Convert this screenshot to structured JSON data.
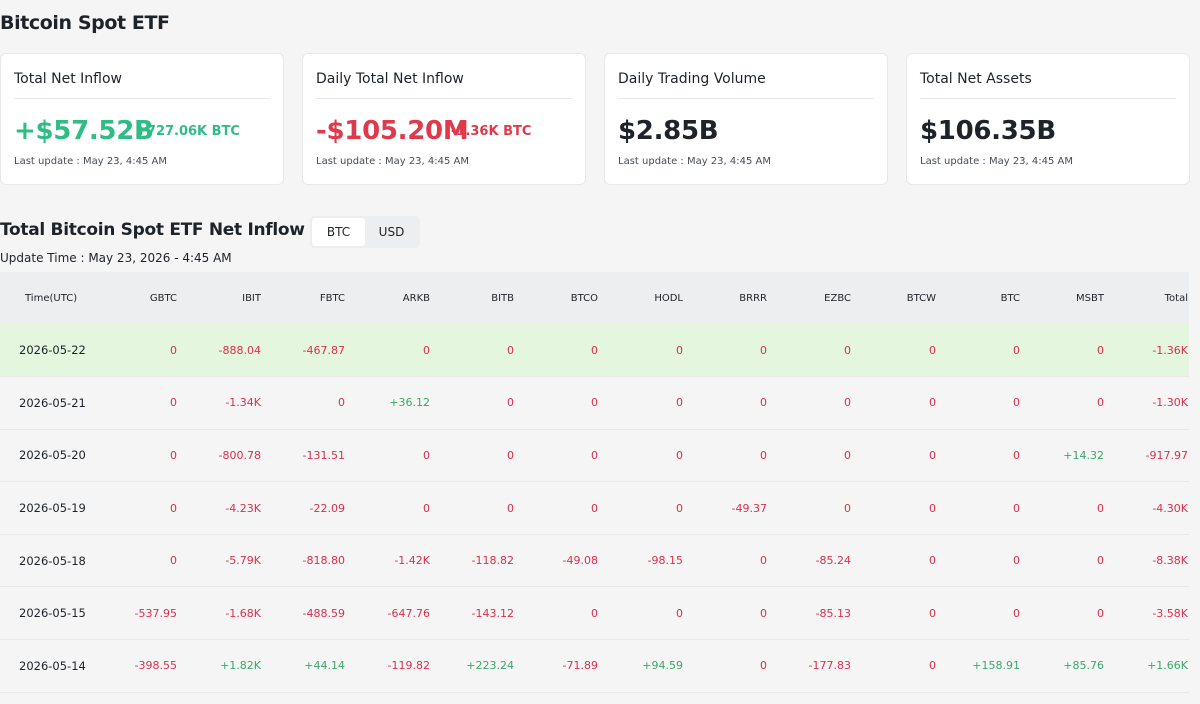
{
  "page_title": "Bitcoin Spot ETF",
  "cards": [
    {
      "label": "Total Net Inflow",
      "value": "+$57.52B",
      "sub": "+727.06K BTC",
      "tone": "pos",
      "update": "Last update : May 23, 4:45 AM"
    },
    {
      "label": "Daily Total Net Inflow",
      "value": "-$105.20M",
      "sub": "-1.36K BTC",
      "tone": "neg",
      "update": "Last update : May 23, 4:45 AM"
    },
    {
      "label": "Daily Trading Volume",
      "value": "$2.85B",
      "sub": "",
      "tone": "neutral",
      "update": "Last update : May 23, 4:45 AM"
    },
    {
      "label": "Total Net Assets",
      "value": "$106.35B",
      "sub": "",
      "tone": "neutral",
      "update": "Last update : May 23, 4:45 AM"
    }
  ],
  "section": {
    "title": "Total Bitcoin Spot ETF Net Inflow (BTC)",
    "toggle": [
      "BTC",
      "USD"
    ],
    "toggle_active": "BTC",
    "update_time": "Update Time : May 23, 2026 - 4:45 AM"
  },
  "table": {
    "columns": [
      "Time(UTC)",
      "GBTC",
      "IBIT",
      "FBTC",
      "ARKB",
      "BITB",
      "BTCO",
      "HODL",
      "BRRR",
      "EZBC",
      "BTCW",
      "BTC",
      "MSBT",
      "Total"
    ],
    "rows": [
      [
        "2026-05-22",
        "0",
        "-888.04",
        "-467.87",
        "0",
        "0",
        "0",
        "0",
        "0",
        "0",
        "0",
        "0",
        "0",
        "-1.36K"
      ],
      [
        "2026-05-21",
        "0",
        "-1.34K",
        "0",
        "+36.12",
        "0",
        "0",
        "0",
        "0",
        "0",
        "0",
        "0",
        "0",
        "-1.30K"
      ],
      [
        "2026-05-20",
        "0",
        "-800.78",
        "-131.51",
        "0",
        "0",
        "0",
        "0",
        "0",
        "0",
        "0",
        "0",
        "+14.32",
        "-917.97"
      ],
      [
        "2026-05-19",
        "0",
        "-4.23K",
        "-22.09",
        "0",
        "0",
        "0",
        "0",
        "-49.37",
        "0",
        "0",
        "0",
        "0",
        "-4.30K"
      ],
      [
        "2026-05-18",
        "0",
        "-5.79K",
        "-818.80",
        "-1.42K",
        "-118.82",
        "-49.08",
        "-98.15",
        "0",
        "-85.24",
        "0",
        "0",
        "0",
        "-8.38K"
      ],
      [
        "2026-05-15",
        "-537.95",
        "-1.68K",
        "-488.59",
        "-647.76",
        "-143.12",
        "0",
        "0",
        "0",
        "-85.13",
        "0",
        "0",
        "0",
        "-3.58K"
      ],
      [
        "2026-05-14",
        "-398.55",
        "+1.82K",
        "+44.14",
        "-119.82",
        "+223.24",
        "-71.89",
        "+94.59",
        "0",
        "-177.83",
        "0",
        "+158.91",
        "+85.76",
        "+1.66K"
      ]
    ],
    "highlight_row": 0
  },
  "colors": {
    "positive": "#2ebd85",
    "negative": "#e0394b",
    "highlight": "#e4f6dd"
  }
}
